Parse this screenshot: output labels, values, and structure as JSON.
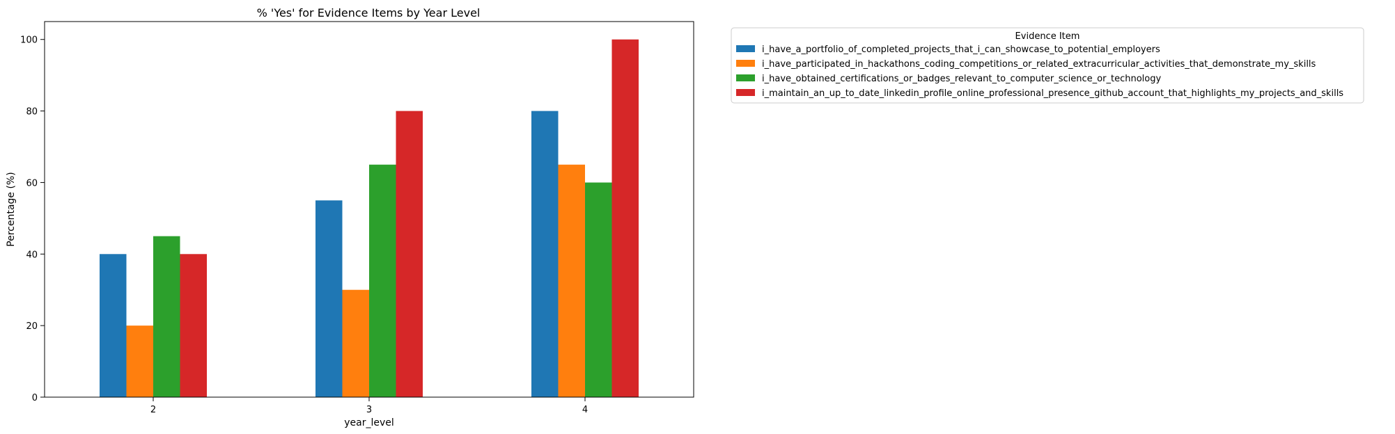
{
  "chart_data": {
    "type": "bar",
    "title": "% 'Yes' for Evidence Items by Year Level",
    "xlabel": "year_level",
    "ylabel": "Percentage (%)",
    "categories": [
      "2",
      "3",
      "4"
    ],
    "ylim": [
      0,
      105
    ],
    "yticks": [
      0,
      20,
      40,
      60,
      80,
      100
    ],
    "grid": false,
    "legend": {
      "title": "Evidence Item",
      "placement": "outside-upper-right"
    },
    "series": [
      {
        "name": "i_have_a_portfolio_of_completed_projects_that_i_can_showcase_to_potential_employers",
        "color": "#1f77b4",
        "values": [
          40,
          55,
          80
        ]
      },
      {
        "name": "i_have_participated_in_hackathons_coding_competitions_or_related_extracurricular_activities_that_demonstrate_my_skills",
        "color": "#ff7f0e",
        "values": [
          20,
          30,
          65
        ]
      },
      {
        "name": "i_have_obtained_certifications_or_badges_relevant_to_computer_science_or_technology",
        "color": "#2ca02c",
        "values": [
          45,
          65,
          60
        ]
      },
      {
        "name": "i_maintain_an_up_to_date_linkedin_profile_online_professional_presence_github_account_that_highlights_my_projects_and_skills",
        "color": "#d62728",
        "values": [
          40,
          80,
          100
        ]
      }
    ]
  }
}
